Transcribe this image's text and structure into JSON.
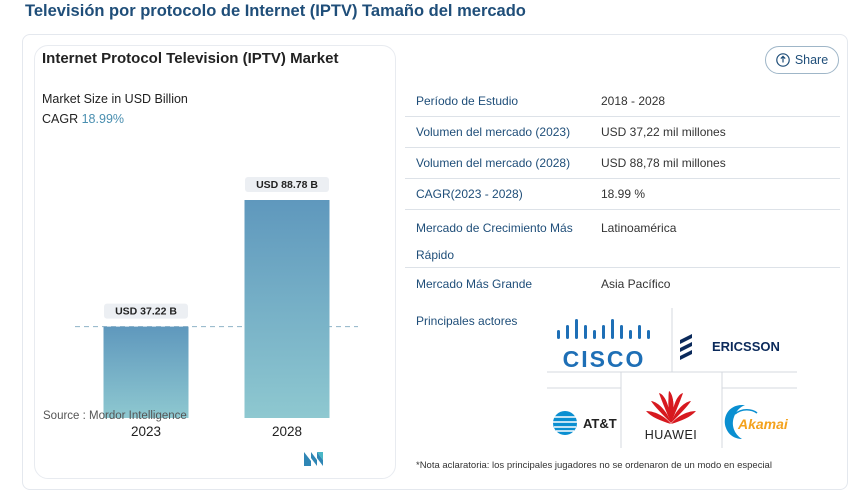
{
  "page": {
    "title": "Televisión por protocolo de Internet (IPTV) Tamaño del mercado",
    "share_label": "Share"
  },
  "chart_data": {
    "type": "bar",
    "title": "Internet Protocol Television (IPTV) Market",
    "subtitle": "Market Size in USD Billion",
    "cagr_label": "CAGR",
    "cagr_value": "18.99%",
    "categories": [
      "2023",
      "2028"
    ],
    "values": [
      37.22,
      88.78
    ],
    "data_labels": [
      "USD 37.22 B",
      "USD 88.78 B"
    ],
    "ylim": [
      0,
      100
    ],
    "reference_line": 37.22,
    "source": "Source :  Mordor Intelligence"
  },
  "stats": [
    {
      "label": "Período de Estudio",
      "value": "2018 - 2028"
    },
    {
      "label": "Volumen del mercado (2023)",
      "value": "USD 37,22 mil millones"
    },
    {
      "label": "Volumen del mercado (2028)",
      "value": "USD 88,78 mil millones"
    },
    {
      "label": "CAGR(2023 - 2028)",
      "value": "18.99 %"
    },
    {
      "label": "Mercado de Crecimiento Más Rápido",
      "value": "Latinoamérica"
    },
    {
      "label": "Mercado Más Grande",
      "value": "Asia Pacífico"
    }
  ],
  "players": {
    "label": "Principales actores",
    "logos": [
      "CISCO",
      "ERICSSON",
      "AT&T",
      "HUAWEI",
      "Akamai"
    ]
  },
  "disclaimer": "*Nota aclaratoria: los principales jugadores no se ordenaron de un modo en especial",
  "colors": {
    "bar_top": "#5f98bd",
    "bar_bottom": "#8ec8d0",
    "accent": "#1f4e79"
  }
}
